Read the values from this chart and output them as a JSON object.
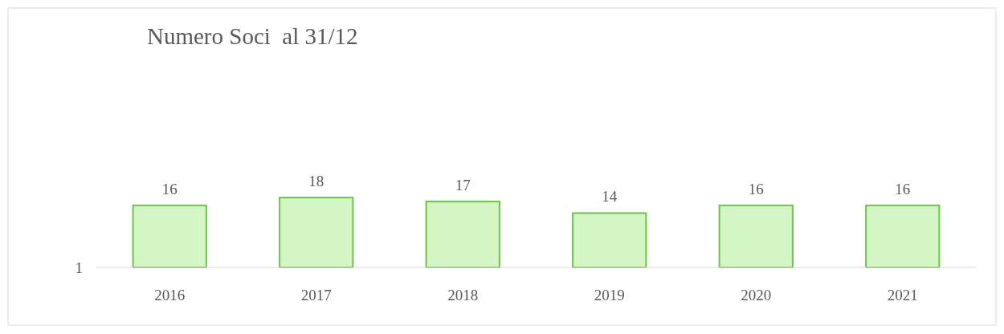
{
  "chart_data": {
    "type": "bar",
    "title": "Numero Soci  al 31/12",
    "categories": [
      "2016",
      "2017",
      "2018",
      "2019",
      "2020",
      "2021"
    ],
    "values": [
      16,
      18,
      17,
      14,
      16,
      16
    ],
    "color": "#d4f5c4",
    "data_labels": true,
    "annotations": [
      "1"
    ]
  }
}
